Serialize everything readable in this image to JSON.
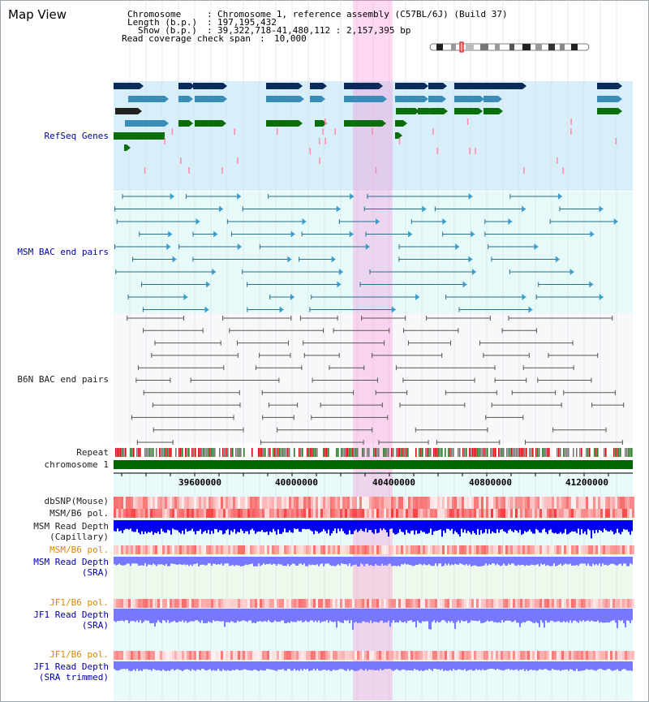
{
  "app": {
    "title": "Map View"
  },
  "header": {
    "chromosome_label": "Chromosome",
    "chromosome_value": "Chromosome 1, reference assembly (C57BL/6J) (Build 37)",
    "length_label": "Length (b.p.)",
    "length_value": "197,195,432",
    "show_label": "Show (b.p.)",
    "show_value": "39,322,718-41,480,112 : 2,157,395 bp",
    "coverage_label": "Read coverage check span",
    "coverage_value": "10,000"
  },
  "axis": {
    "ticks": [
      "39600000",
      "40000000",
      "40400000",
      "40800000",
      "41200000"
    ]
  },
  "tracks": {
    "refseq": "RefSeq Genes",
    "msm_bac": "MSM BAC end pairs",
    "b6n_bac": "B6N BAC end pairs",
    "repeat": "Repeat",
    "chromosome": "chromosome 1",
    "dbsnp": "dbSNP(Mouse)",
    "msm_b6_pol_1": "MSM/B6 pol.",
    "msm_read_depth_cap_1": "MSM Read Depth",
    "msm_read_depth_cap_2": "(Capillary)",
    "msm_b6_pol_2": "MSM/B6 pol.",
    "msm_read_depth_sra_1": "MSM Read Depth",
    "msm_read_depth_sra_2": "(SRA)",
    "jf1_b6_pol_1": "JF1/B6 pol.",
    "jf1_read_depth_sra_1": "JF1 Read Depth",
    "jf1_read_depth_sra_2": "(SRA)",
    "jf1_b6_pol_2": "JF1/B6 pol.",
    "jf1_read_depth_trim_1": "JF1 Read Depth",
    "jf1_read_depth_trim_2": "(SRA trimmed)"
  },
  "colors": {
    "highlight": "#ff66cc",
    "refseq_bg": "#d8eef8",
    "msm_bac_bg": "#e6fafa",
    "light_panel_bg": "#e8fafa",
    "sra_panel_bg": "#eef8ec",
    "gene_dark": "#0a2a5c",
    "gene_mid": "#3a8db8",
    "gene_green": "#0a6e0a",
    "msm_bac_line": "#2a6f8a",
    "b6n_bac_line": "#555555",
    "track_label_dark": "#222222",
    "track_label_blue": "#0000aa",
    "track_label_orange": "#dd8800",
    "chromosome_bar": "#006600",
    "capillary_depth": "#0000ee",
    "sra_depth": "#7777ff",
    "pol_red": "#ee0000"
  }
}
